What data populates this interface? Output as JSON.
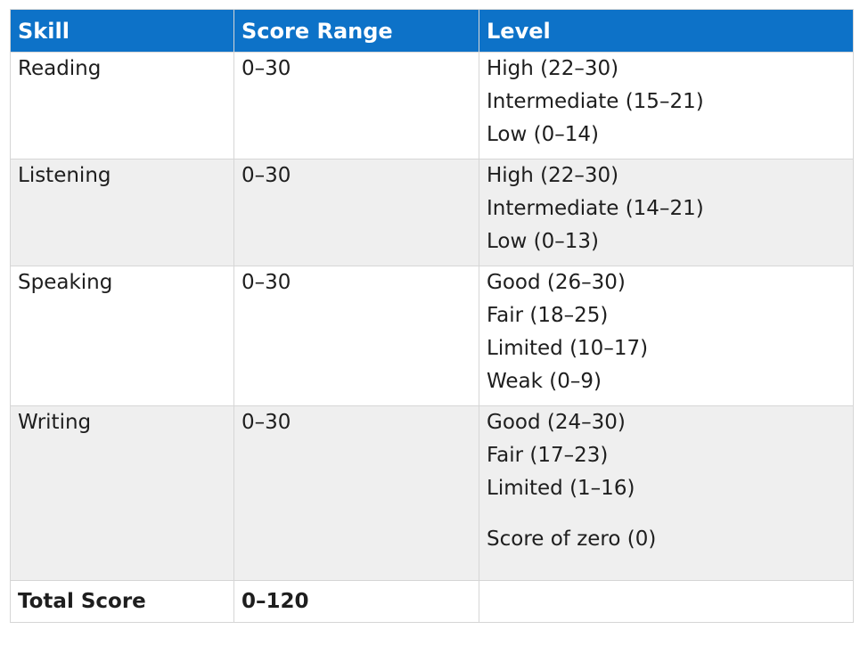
{
  "headers": [
    "Skill",
    "Score Range",
    "Level"
  ],
  "rows": [
    {
      "skill": "Reading",
      "range": "0–30",
      "levels": [
        "High (22–30)",
        "Intermediate (15–21)",
        "Low (0–14)"
      ]
    },
    {
      "skill": "Listening",
      "range": "0–30",
      "levels": [
        "High (22–30)",
        "Intermediate (14–21)",
        "Low (0–13)"
      ]
    },
    {
      "skill": "Speaking",
      "range": "0–30",
      "levels": [
        "Good (26–30)",
        "Fair (18–25)",
        "Limited (10–17)",
        "Weak (0–9)"
      ]
    },
    {
      "skill": "Writing",
      "range": "0–30",
      "levels": [
        "Good (24–30)",
        "Fair (17–23)",
        "Limited (1–16)",
        "Score of zero (0)"
      ]
    }
  ],
  "total": {
    "skill": "Total Score",
    "range": "0–120",
    "level": ""
  },
  "colors": {
    "header_bg": "#0d72c8",
    "alt_row_bg": "#efefef",
    "border": "#d6d6d6"
  }
}
